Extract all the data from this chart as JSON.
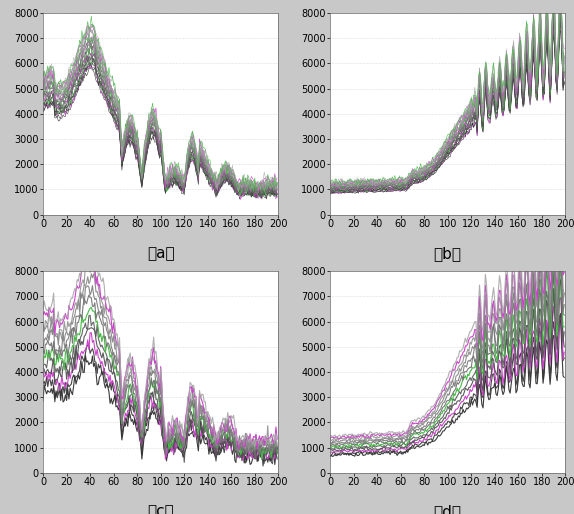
{
  "n_bands": 200,
  "ylim": [
    0,
    8000
  ],
  "xlim": [
    0,
    200
  ],
  "yticks": [
    0,
    1000,
    2000,
    3000,
    4000,
    5000,
    6000,
    7000,
    8000
  ],
  "xticks": [
    0,
    20,
    40,
    60,
    80,
    100,
    120,
    140,
    160,
    180,
    200
  ],
  "labels": [
    "（a）",
    "（b）",
    "（c）",
    "（d）"
  ],
  "bg_color": "#c8c8c8",
  "plot_bg_color": "#ffffff",
  "n_curves_ab": 30,
  "n_curves_cd": 12,
  "tick_fontsize": 7,
  "label_fontsize": 11,
  "linewidth_ab": 0.4,
  "linewidth_cd": 0.8,
  "figsize": [
    5.74,
    5.14
  ],
  "dpi": 100,
  "accent_colors": [
    "#cc44cc",
    "#44cc44",
    "#cc44cc",
    "#44cc44"
  ]
}
